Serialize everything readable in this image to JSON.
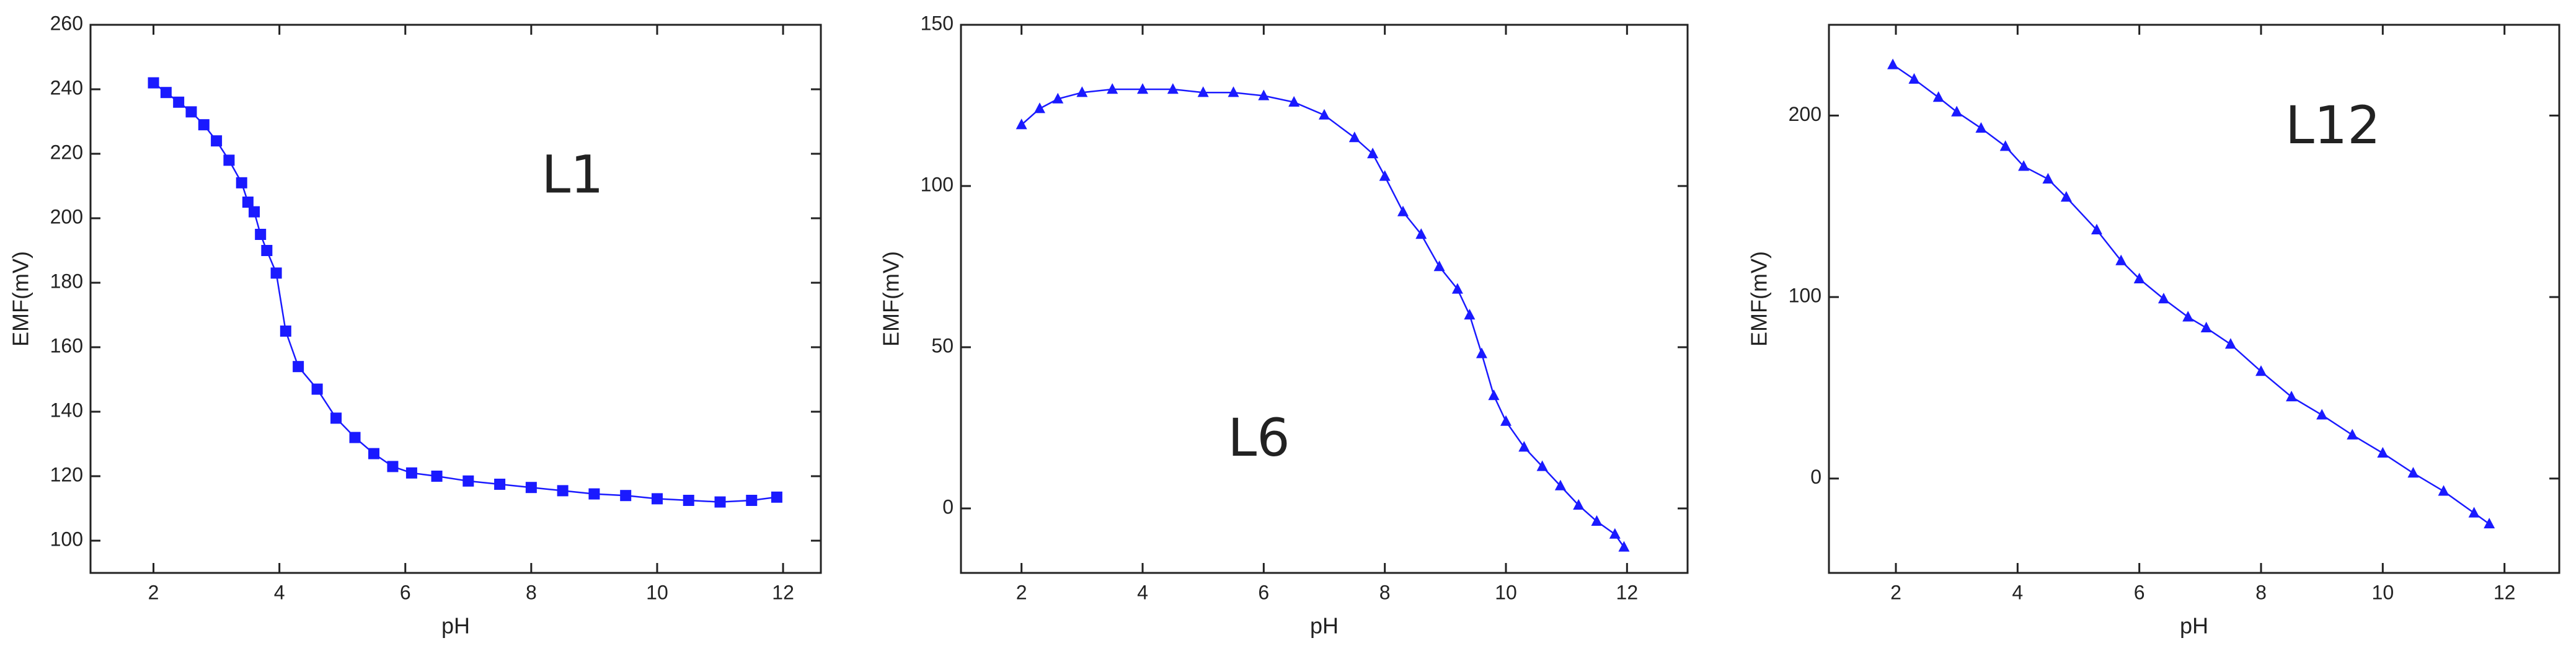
{
  "chart_data": [
    {
      "type": "line",
      "x_label": "pH",
      "y_label": "EMF(mV)",
      "annotation": "L1",
      "marker": "square",
      "xlim": [
        1.0,
        12.6
      ],
      "ylim": [
        90,
        260
      ],
      "xticks": [
        2,
        4,
        6,
        8,
        10,
        12
      ],
      "yticks": [
        100,
        120,
        140,
        160,
        180,
        200,
        220,
        240,
        260
      ],
      "series": [
        {
          "name": "L1",
          "color": "#1a1aff",
          "x": [
            2.0,
            2.2,
            2.4,
            2.6,
            2.8,
            3.0,
            3.2,
            3.4,
            3.5,
            3.6,
            3.7,
            3.8,
            3.95,
            4.1,
            4.3,
            4.6,
            4.9,
            5.2,
            5.5,
            5.8,
            6.1,
            6.5,
            7.0,
            7.5,
            8.0,
            8.5,
            9.0,
            9.5,
            10.0,
            10.5,
            11.0,
            11.5,
            11.9
          ],
          "values": [
            242,
            239,
            236,
            233,
            229,
            224,
            218,
            211,
            205,
            202,
            195,
            190,
            183,
            165,
            154,
            147,
            138,
            132,
            127,
            123,
            121,
            120,
            118.5,
            117.5,
            116.5,
            115.5,
            114.5,
            114,
            113,
            112.5,
            112,
            112.5,
            113.5
          ]
        }
      ]
    },
    {
      "type": "line",
      "x_label": "pH",
      "y_label": "EMF(mV)",
      "annotation": "L6",
      "marker": "triangle",
      "xlim": [
        1.0,
        13.0
      ],
      "ylim": [
        -20,
        150
      ],
      "xticks": [
        2,
        4,
        6,
        8,
        10,
        12
      ],
      "yticks": [
        0,
        50,
        100,
        150
      ],
      "series": [
        {
          "name": "L6",
          "color": "#1a1aff",
          "x": [
            2.0,
            2.3,
            2.6,
            3.0,
            3.5,
            4.0,
            4.5,
            5.0,
            5.5,
            6.0,
            6.5,
            7.0,
            7.5,
            7.8,
            8.0,
            8.3,
            8.6,
            8.9,
            9.2,
            9.4,
            9.6,
            9.8,
            10.0,
            10.3,
            10.6,
            10.9,
            11.2,
            11.5,
            11.8,
            11.95
          ],
          "values": [
            119,
            124,
            127,
            129,
            130,
            130,
            130,
            129,
            129,
            128,
            126,
            122,
            115,
            110,
            103,
            92,
            85,
            75,
            68,
            60,
            48,
            35,
            27,
            19,
            13,
            7,
            1,
            -4,
            -8,
            -12
          ]
        }
      ]
    },
    {
      "type": "line",
      "x_label": "pH",
      "y_label": "EMF(mV)",
      "annotation": "L12",
      "marker": "triangle",
      "xlim": [
        0.9,
        12.9
      ],
      "ylim": [
        -52,
        250
      ],
      "xticks": [
        2,
        4,
        6,
        8,
        10,
        12
      ],
      "yticks": [
        0,
        100,
        200
      ],
      "series": [
        {
          "name": "L12",
          "color": "#1a1aff",
          "x": [
            1.95,
            2.3,
            2.7,
            3.0,
            3.4,
            3.8,
            4.1,
            4.5,
            4.8,
            5.3,
            5.7,
            6.0,
            6.4,
            6.8,
            7.1,
            7.5,
            8.0,
            8.5,
            9.0,
            9.5,
            10.0,
            10.5,
            11.0,
            11.5,
            11.75
          ],
          "values": [
            228,
            220,
            210,
            202,
            193,
            183,
            172,
            165,
            155,
            137,
            120,
            110,
            99,
            89,
            83,
            74,
            59,
            45,
            35,
            24,
            14,
            3,
            -7,
            -19,
            -25
          ]
        }
      ]
    }
  ]
}
